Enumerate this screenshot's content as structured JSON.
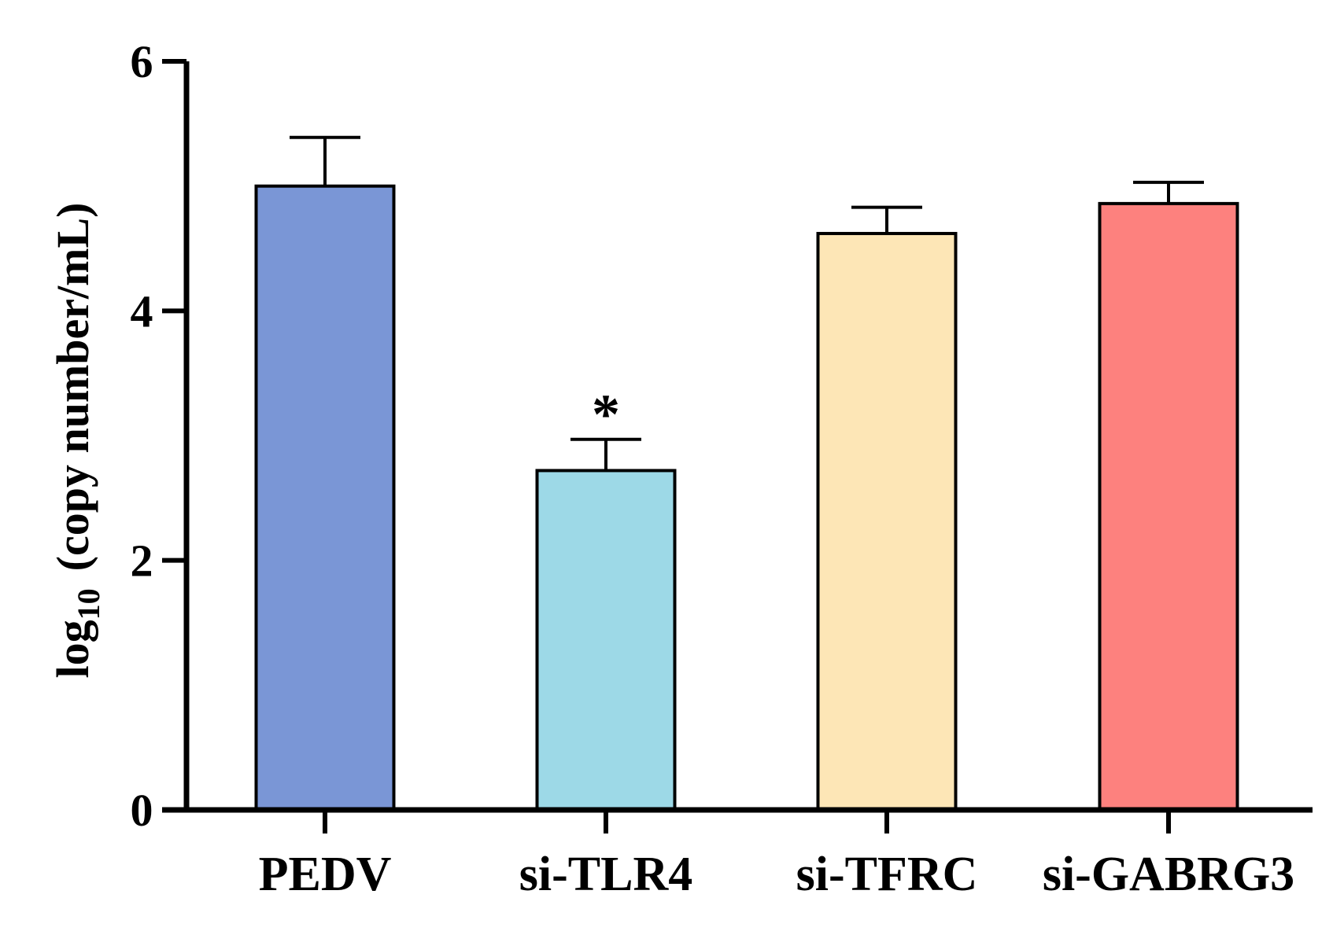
{
  "chart_data": {
    "type": "bar",
    "title": "",
    "xlabel": "",
    "ylabel": {
      "prefix": "log",
      "subscript": "10",
      "suffix": "(copy number/mL)"
    },
    "ylim": [
      0,
      6
    ],
    "yticks": [
      "0",
      "2",
      "4",
      "6"
    ],
    "ytick_values": [
      0,
      2,
      4,
      6
    ],
    "categories": [
      "PEDV",
      "si-TLR4",
      "si-TFRC",
      "si-GABRG3"
    ],
    "values": [
      5.0,
      2.72,
      4.62,
      4.86
    ],
    "errors": [
      0.39,
      0.25,
      0.21,
      0.17
    ],
    "significance": [
      "",
      "*",
      "",
      ""
    ],
    "colors": [
      "#7a96d6",
      "#9dd9e7",
      "#fde6b6",
      "#fd817e"
    ],
    "grid": false,
    "legend": "none"
  }
}
